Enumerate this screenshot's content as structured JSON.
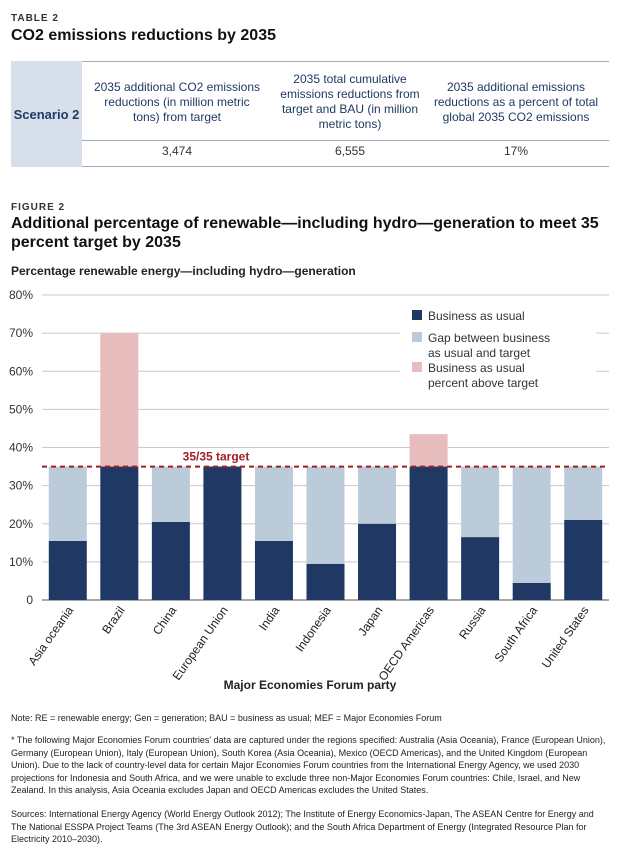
{
  "table": {
    "label": "TABLE 2",
    "title": "CO2 emissions reductions by 2035",
    "row_header": "Scenario 2",
    "columns": [
      {
        "header": "2035 additional CO2 emissions reductions (in million metric tons) from target",
        "value": "3,474"
      },
      {
        "header": "2035 total cumulative emissions reductions from target and BAU (in million metric tons)",
        "value": "6,555"
      },
      {
        "header": "2035 additional emissions reductions as a percent of total global 2035 CO2 emissions",
        "value": "17%"
      }
    ]
  },
  "figure": {
    "label": "FIGURE 2",
    "title": "Additional percentage of renewable—including hydro—generation to meet 35 percent target by 2035"
  },
  "chart_data": {
    "type": "bar",
    "stacked": true,
    "title": "Percentage renewable energy—including hydro—generation",
    "xlabel": "Major Economies Forum party",
    "ylabel": "Percentage renewable energy—including hydro—generation",
    "ylim": [
      0,
      80
    ],
    "yticks": [
      "0",
      "10%",
      "20%",
      "30%",
      "40%",
      "50%",
      "60%",
      "70%",
      "80%"
    ],
    "target": 35,
    "target_label": "35/35 target",
    "categories": [
      "Asia oceania",
      "Brazil",
      "China",
      "European Union",
      "India",
      "Indonesia",
      "Japan",
      "OECD Americas",
      "Russia",
      "South Africa",
      "United States"
    ],
    "series": [
      {
        "name": "Business as usual",
        "color": "#1f3864",
        "values": [
          15.5,
          35,
          20.5,
          35,
          15.5,
          9.5,
          20,
          35,
          16.5,
          4.5,
          21
        ]
      },
      {
        "name": "Gap between business as usual and target",
        "color": "#bccbd9",
        "values": [
          19.5,
          0,
          14.5,
          0,
          19.5,
          25.5,
          15,
          0,
          18.5,
          30.5,
          14
        ]
      },
      {
        "name": "Business as usual percent above target",
        "color": "#e6bcbc",
        "values": [
          0,
          35,
          0,
          0,
          0,
          0,
          0,
          8.5,
          0,
          0,
          0
        ]
      }
    ],
    "legend_position": "top-right"
  },
  "notes": {
    "abbrev": "Note: RE = renewable energy; Gen = generation; BAU = business as usual; MEF = Major Economies Forum",
    "footnote": "* The following Major Economies Forum countries' data are captured under the regions specified: Australia (Asia Oceania), France (European Union), Germany (European Union), Italy (European Union), South Korea (Asia Oceania), Mexico (OECD Americas), and the United Kingdom (European Union). Due to the lack of country-level data for certain Major Economies Forum countries from the International Energy Agency, we used 2030 projections for Indonesia and South Africa, and we were unable to exclude three non-Major Economies Forum countries: Chile, Israel, and New Zealand. In this analysis, Asia Oceania excludes Japan and OECD Americas excludes the United States.",
    "sources": "Sources: International Energy Agency (World Energy Outlook 2012); The Institute of Energy Economics-Japan, The ASEAN Centre for Energy and The National ESSPA Project Teams (The 3rd ASEAN Energy Outlook); and the South Africa Department of Energy (Integrated Resource Plan for Electricity 2010–2030)."
  }
}
